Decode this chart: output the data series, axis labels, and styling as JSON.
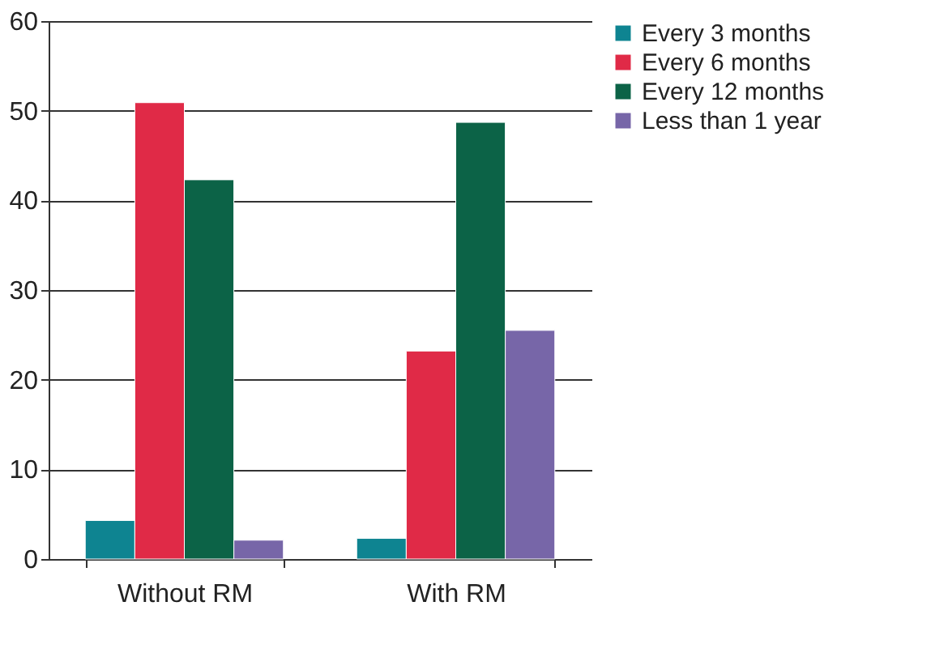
{
  "chart_data": {
    "type": "bar",
    "categories": [
      "Without RM",
      "With RM"
    ],
    "series": [
      {
        "name": "Every 3 months",
        "color": "#0e8491",
        "values": [
          4.3,
          2.3
        ]
      },
      {
        "name": "Every 6 months",
        "color": "#e02a47",
        "values": [
          50.9,
          23.2
        ]
      },
      {
        "name": "Every 12 months",
        "color": "#0c6347",
        "values": [
          42.3,
          48.7
        ]
      },
      {
        "name": "Less than 1 year",
        "color": "#7766a8",
        "values": [
          2.1,
          25.5
        ]
      }
    ],
    "ylim": [
      0,
      60
    ],
    "yticks": [
      0,
      10,
      20,
      30,
      40,
      50,
      60
    ],
    "grid": "y",
    "legend": "right"
  }
}
